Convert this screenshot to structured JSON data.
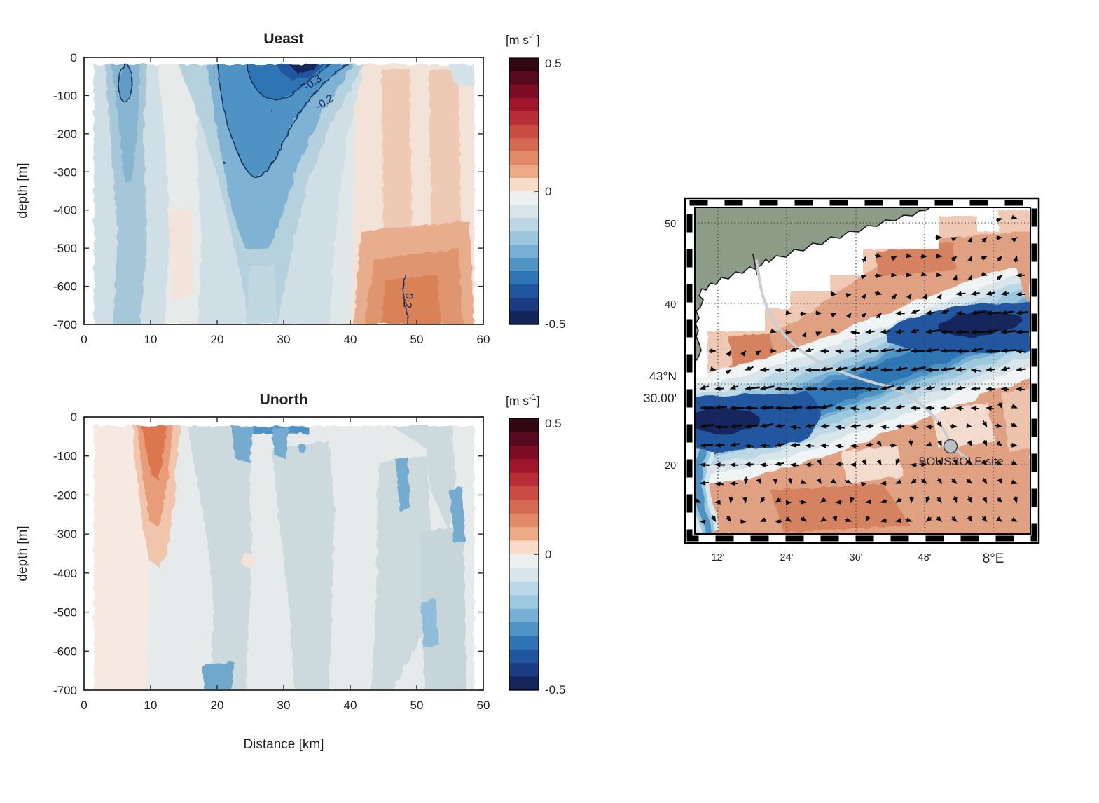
{
  "figure": {
    "background": "#ffffff"
  },
  "palette": {
    "land": "#8c9c87",
    "coast_line": "#1c1c1c",
    "track": "#c9ced2",
    "marker_fill": "#b9c1c6",
    "marker_edge": "#444444",
    "arrow": "#0a0a0a",
    "grid_dots": "#3a3a3a",
    "frame": "#000000",
    "axis": "#2b2b2b",
    "text": "#1f1f1f",
    "map_red_base": "#e0a183",
    "map_red_dark": "#d4825f",
    "map_red_light": "#efc9b4",
    "map_cream": "#f3dccd"
  },
  "panels": {
    "ueast": {
      "title": "Ueast",
      "ylabel": "depth [m]",
      "x_tick_labels": [
        "0",
        "10",
        "20",
        "30",
        "40",
        "50",
        "60"
      ],
      "y_tick_labels": [
        "0",
        "-100",
        "-200",
        "-300",
        "-400",
        "-500",
        "-600",
        "-700"
      ],
      "contour_labels": {
        "neg03": "-0.3",
        "neg02": "-0.2",
        "pos02": "0.2"
      }
    },
    "unorth": {
      "title": "Unorth",
      "ylabel": "depth [m]",
      "xlabel": "Distance [km]",
      "x_tick_labels": [
        "0",
        "10",
        "20",
        "30",
        "40",
        "50",
        "60"
      ],
      "y_tick_labels": [
        "0",
        "-100",
        "-200",
        "-300",
        "-400",
        "-500",
        "-600",
        "-700"
      ]
    },
    "colorbar": {
      "unit_pre": "[m s",
      "unit_sup": "-1",
      "unit_post": "]",
      "tick_labels": [
        "0.5",
        "0",
        "-0.5"
      ],
      "colors": [
        "#310712",
        "#570a1d",
        "#7d0d25",
        "#9f152b",
        "#b82e35",
        "#c94c42",
        "#d66951",
        "#e28a68",
        "#edaa86",
        "#f8dcc9",
        "#edf0f0",
        "#d8e6ec",
        "#bcd8e6",
        "#9cc8de",
        "#77b0d4",
        "#5093c5",
        "#2f74b3",
        "#20569e",
        "#1a3c82",
        "#14255c"
      ]
    },
    "map": {
      "lat_tick_labels": [
        "50'",
        "40'",
        "43°N",
        "30.00'",
        "20'"
      ],
      "lon_tick_labels": [
        "12'",
        "24'",
        "36'",
        "48'",
        "8°E"
      ],
      "site_label": "BOUSSOLE site"
    }
  },
  "chart_data": [
    {
      "id": "ueast",
      "type": "heatmap",
      "subtype": "filled-contour vertical section",
      "title": "Ueast",
      "xlabel": "Distance [km]",
      "ylabel": "depth [m]",
      "xlim": [
        0,
        60
      ],
      "ylim": [
        -700,
        0
      ],
      "x_ticks": [
        0,
        10,
        20,
        30,
        40,
        50,
        60
      ],
      "y_ticks": [
        0,
        -100,
        -200,
        -300,
        -400,
        -500,
        -600,
        -700
      ],
      "value_unit": "m s-1",
      "value_range": [
        -0.5,
        0.5
      ],
      "colormap": "diverging red(+)/white/blue(-), 20 steps of 0.05",
      "labeled_contours": [
        -0.3,
        -0.2,
        0.2
      ],
      "grid": false,
      "features": [
        {
          "name": "westward jet core",
          "x_km": [
            17,
            42
          ],
          "depth_m": [
            0,
            -320
          ],
          "value_ms": [
            -0.2,
            -0.5
          ],
          "peak": {
            "x_km": 34,
            "depth_m": -25,
            "value_ms": -0.5
          }
        },
        {
          "name": "closed -0.2 cell",
          "x_km": [
            5,
            7
          ],
          "depth_m": [
            -25,
            -120
          ],
          "value_ms": -0.2
        },
        {
          "name": "weak westward band",
          "x_km": [
            3,
            9
          ],
          "depth_m": [
            0,
            -700
          ],
          "value_ms": -0.15
        },
        {
          "name": "eastward flow",
          "x_km": [
            43,
            60
          ],
          "depth_m": [
            0,
            -700
          ],
          "value_ms": [
            0.05,
            0.25
          ],
          "note": "0.2 contour near x=48 km below -550 m"
        }
      ]
    },
    {
      "id": "unorth",
      "type": "heatmap",
      "subtype": "filled-contour vertical section",
      "title": "Unorth",
      "xlabel": "Distance [km]",
      "ylabel": "depth [m]",
      "xlim": [
        0,
        60
      ],
      "ylim": [
        -700,
        0
      ],
      "x_ticks": [
        0,
        10,
        20,
        30,
        40,
        50,
        60
      ],
      "y_ticks": [
        0,
        -100,
        -200,
        -300,
        -400,
        -500,
        -600,
        -700
      ],
      "value_unit": "m s-1",
      "value_range": [
        -0.5,
        0.5
      ],
      "colormap": "diverging red(+)/white/blue(-), 20 steps of 0.05",
      "labeled_contours": [],
      "grid": false,
      "features": [
        {
          "name": "northward core",
          "x_km": [
            6,
            14
          ],
          "depth_m": [
            0,
            -380
          ],
          "value_ms": [
            0.1,
            0.3
          ],
          "peak": {
            "x_km": 10,
            "depth_m": -70,
            "value_ms": 0.3
          }
        },
        {
          "name": "southward surface patches",
          "x_km": [
            20,
            31
          ],
          "depth_m": [
            0,
            -130
          ],
          "value_ms": [
            -0.1,
            -0.2
          ]
        },
        {
          "name": "weak field elsewhere",
          "value_ms": [
            -0.1,
            0.05
          ]
        }
      ]
    },
    {
      "id": "map",
      "type": "map",
      "lat_ticks": [
        "20'",
        "43°N 30.00'",
        "40'",
        "50'"
      ],
      "lon_ticks": [
        "12'",
        "24'",
        "36'",
        "48'",
        "8°E"
      ],
      "site": {
        "label": "BOUSSOLE site",
        "approx_lat": "43°22'N",
        "approx_lon": "7°54'E"
      },
      "layers": [
        "land with coastline in NW corner",
        "filled current field using same -0.5..0.5 m s-1 colorbar",
        "quiver arrows: strongest point W-SW inside the blue jet band",
        "grey track line from the coast to the BOUSSOLE site",
        "dotted lat/lon graticule"
      ],
      "jet": {
        "description": "westward current band crossing the map diagonally",
        "at_east_edge_lat": "~43°37'N",
        "at_west_edge_lat": "~43°25'N"
      }
    }
  ]
}
